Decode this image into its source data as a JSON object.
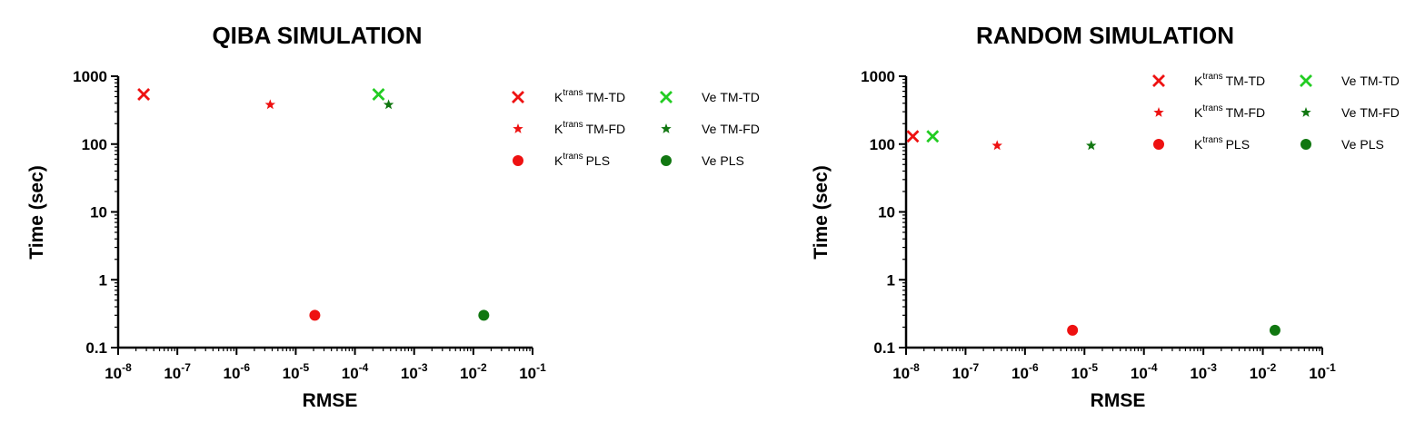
{
  "colors": {
    "red": "#ee1111",
    "light_green": "#22cc22",
    "dark_green": "#117711"
  },
  "chart_data": [
    {
      "type": "scatter",
      "title": "QIBA SIMULATION",
      "xlabel": "RMSE",
      "ylabel": "Time (sec)",
      "xscale": "log",
      "yscale": "log",
      "xlim": [
        1e-08,
        0.1
      ],
      "ylim": [
        0.1,
        1000
      ],
      "x_ticks": [
        {
          "base": "10",
          "exp": "-8",
          "value": 1e-08
        },
        {
          "base": "10",
          "exp": "-7",
          "value": 1e-07
        },
        {
          "base": "10",
          "exp": "-6",
          "value": 1e-06
        },
        {
          "base": "10",
          "exp": "-5",
          "value": 1e-05
        },
        {
          "base": "10",
          "exp": "-4",
          "value": 0.0001
        },
        {
          "base": "10",
          "exp": "-3",
          "value": 0.001
        },
        {
          "base": "10",
          "exp": "-2",
          "value": 0.01
        },
        {
          "base": "10",
          "exp": "-1",
          "value": 0.1
        }
      ],
      "y_ticks": [
        {
          "label": "0.1",
          "value": 0.1
        },
        {
          "label": "1",
          "value": 1
        },
        {
          "label": "10",
          "value": 10
        },
        {
          "label": "100",
          "value": 100
        },
        {
          "label": "1000",
          "value": 1000
        }
      ],
      "grid": false,
      "legend_position": "top-right",
      "series": [
        {
          "name_base": "K",
          "name_sup": "trans",
          "name_rest": "TM-TD",
          "marker": "cross",
          "color": "#ee1111",
          "points": [
            {
              "x": 2.7e-08,
              "y": 540
            }
          ]
        },
        {
          "name_base": "K",
          "name_sup": "trans",
          "name_rest": "TM-FD",
          "marker": "star",
          "color": "#ee1111",
          "points": [
            {
              "x": 3.7e-06,
              "y": 380
            }
          ]
        },
        {
          "name_base": "K",
          "name_sup": "trans",
          "name_rest": "PLS",
          "marker": "circle",
          "color": "#ee1111",
          "points": [
            {
              "x": 2.1e-05,
              "y": 0.3
            }
          ]
        },
        {
          "name_base": "Ve",
          "name_sup": "",
          "name_rest": "TM-TD",
          "marker": "cross",
          "color": "#22cc22",
          "points": [
            {
              "x": 0.00025,
              "y": 540
            }
          ]
        },
        {
          "name_base": "Ve",
          "name_sup": "",
          "name_rest": "TM-FD",
          "marker": "star",
          "color": "#117711",
          "points": [
            {
              "x": 0.00037,
              "y": 380
            }
          ]
        },
        {
          "name_base": "Ve",
          "name_sup": "",
          "name_rest": "PLS",
          "marker": "circle",
          "color": "#117711",
          "points": [
            {
              "x": 0.015,
              "y": 0.3
            }
          ]
        }
      ]
    },
    {
      "type": "scatter",
      "title": "RANDOM SIMULATION",
      "xlabel": "RMSE",
      "ylabel": "Time (sec)",
      "xscale": "log",
      "yscale": "log",
      "xlim": [
        1e-08,
        0.1
      ],
      "ylim": [
        0.1,
        1000
      ],
      "x_ticks": [
        {
          "base": "10",
          "exp": "-8",
          "value": 1e-08
        },
        {
          "base": "10",
          "exp": "-7",
          "value": 1e-07
        },
        {
          "base": "10",
          "exp": "-6",
          "value": 1e-06
        },
        {
          "base": "10",
          "exp": "-5",
          "value": 1e-05
        },
        {
          "base": "10",
          "exp": "-4",
          "value": 0.0001
        },
        {
          "base": "10",
          "exp": "-3",
          "value": 0.001
        },
        {
          "base": "10",
          "exp": "-2",
          "value": 0.01
        },
        {
          "base": "10",
          "exp": "-1",
          "value": 0.1
        }
      ],
      "y_ticks": [
        {
          "label": "0.1",
          "value": 0.1
        },
        {
          "label": "1",
          "value": 1
        },
        {
          "label": "10",
          "value": 10
        },
        {
          "label": "100",
          "value": 100
        },
        {
          "label": "1000",
          "value": 1000
        }
      ],
      "grid": false,
      "legend_position": "top-right",
      "series": [
        {
          "name_base": "K",
          "name_sup": "trans",
          "name_rest": "TM-TD",
          "marker": "cross",
          "color": "#ee1111",
          "points": [
            {
              "x": 1.3e-08,
              "y": 130
            }
          ]
        },
        {
          "name_base": "K",
          "name_sup": "trans",
          "name_rest": "TM-FD",
          "marker": "star",
          "color": "#ee1111",
          "points": [
            {
              "x": 3.4e-07,
              "y": 95
            }
          ]
        },
        {
          "name_base": "K",
          "name_sup": "trans",
          "name_rest": "PLS",
          "marker": "circle",
          "color": "#ee1111",
          "points": [
            {
              "x": 6.3e-06,
              "y": 0.18
            }
          ]
        },
        {
          "name_base": "Ve",
          "name_sup": "",
          "name_rest": "TM-TD",
          "marker": "cross",
          "color": "#22cc22",
          "points": [
            {
              "x": 2.8e-08,
              "y": 130
            }
          ]
        },
        {
          "name_base": "Ve",
          "name_sup": "",
          "name_rest": "TM-FD",
          "marker": "star",
          "color": "#117711",
          "points": [
            {
              "x": 1.3e-05,
              "y": 95
            }
          ]
        },
        {
          "name_base": "Ve",
          "name_sup": "",
          "name_rest": "PLS",
          "marker": "circle",
          "color": "#117711",
          "points": [
            {
              "x": 0.016,
              "y": 0.18
            }
          ]
        }
      ]
    }
  ]
}
